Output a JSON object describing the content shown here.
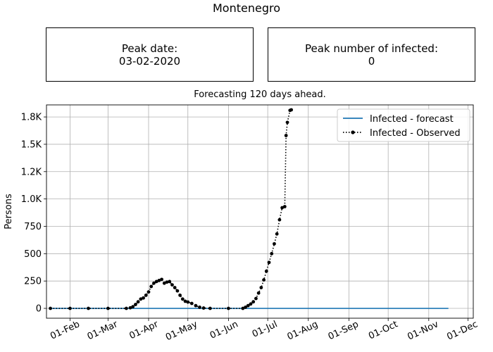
{
  "country_title": "Montenegro",
  "peak_date": {
    "label": "Peak date:",
    "value": "03-02-2020"
  },
  "peak_infected": {
    "label": "Peak number of infected:",
    "value": "0"
  },
  "colors": {
    "forecast": "#1f77b4",
    "observed": "#000000",
    "grid": "#b0b0b0"
  },
  "chart_data": {
    "type": "line",
    "title": "Forecasting 120 days ahead.",
    "xlabel": "",
    "ylabel": "Persons",
    "x_ticks": [
      "01-Feb",
      "01-Mar",
      "01-Apr",
      "01-May",
      "01-Jun",
      "01-Jul",
      "01-Aug",
      "01-Sep",
      "01-Oct",
      "01-Nov",
      "01-Dec"
    ],
    "y_ticks": [
      "0",
      "250",
      "500",
      "750",
      "1.0K",
      "1.2K",
      "1.5K",
      "1.8K"
    ],
    "y_tick_values": [
      0,
      250,
      500,
      750,
      1000,
      1250,
      1500,
      1750
    ],
    "xlim": [
      "2020-01-14",
      "2020-12-05"
    ],
    "ylim": [
      -90,
      1860
    ],
    "grid": true,
    "legend": "top-right",
    "series": [
      {
        "name": "Infected - forecast",
        "style": "solid-line",
        "points": [
          [
            "2020-01-17",
            0
          ],
          [
            "2020-11-16",
            0
          ]
        ]
      },
      {
        "name": "Infected - Observed",
        "style": "dotted-line-with-dots",
        "points": [
          [
            "2020-01-17",
            0
          ],
          [
            "2020-02-01",
            0
          ],
          [
            "2020-02-15",
            0
          ],
          [
            "2020-03-01",
            0
          ],
          [
            "2020-03-15",
            0
          ],
          [
            "2020-03-18",
            5
          ],
          [
            "2020-03-20",
            15
          ],
          [
            "2020-03-22",
            35
          ],
          [
            "2020-03-24",
            60
          ],
          [
            "2020-03-26",
            85
          ],
          [
            "2020-03-28",
            95
          ],
          [
            "2020-03-30",
            120
          ],
          [
            "2020-04-01",
            150
          ],
          [
            "2020-04-03",
            200
          ],
          [
            "2020-04-05",
            230
          ],
          [
            "2020-04-07",
            245
          ],
          [
            "2020-04-09",
            255
          ],
          [
            "2020-04-11",
            265
          ],
          [
            "2020-04-13",
            230
          ],
          [
            "2020-04-15",
            240
          ],
          [
            "2020-04-17",
            245
          ],
          [
            "2020-04-19",
            215
          ],
          [
            "2020-04-21",
            190
          ],
          [
            "2020-04-23",
            160
          ],
          [
            "2020-04-25",
            120
          ],
          [
            "2020-04-27",
            85
          ],
          [
            "2020-04-29",
            65
          ],
          [
            "2020-05-01",
            58
          ],
          [
            "2020-05-04",
            45
          ],
          [
            "2020-05-07",
            25
          ],
          [
            "2020-05-10",
            10
          ],
          [
            "2020-05-13",
            3
          ],
          [
            "2020-05-18",
            0
          ],
          [
            "2020-06-01",
            0
          ],
          [
            "2020-06-12",
            0
          ],
          [
            "2020-06-14",
            10
          ],
          [
            "2020-06-16",
            25
          ],
          [
            "2020-06-18",
            40
          ],
          [
            "2020-06-20",
            60
          ],
          [
            "2020-06-22",
            90
          ],
          [
            "2020-06-24",
            140
          ],
          [
            "2020-06-26",
            190
          ],
          [
            "2020-06-28",
            260
          ],
          [
            "2020-06-30",
            340
          ],
          [
            "2020-07-02",
            420
          ],
          [
            "2020-07-04",
            500
          ],
          [
            "2020-07-06",
            590
          ],
          [
            "2020-07-08",
            680
          ],
          [
            "2020-07-10",
            810
          ],
          [
            "2020-07-12",
            920
          ],
          [
            "2020-07-14",
            930
          ],
          [
            "2020-07-15",
            1580
          ],
          [
            "2020-07-16",
            1700
          ],
          [
            "2020-07-18",
            1810
          ],
          [
            "2020-07-19",
            1815
          ]
        ]
      }
    ]
  }
}
